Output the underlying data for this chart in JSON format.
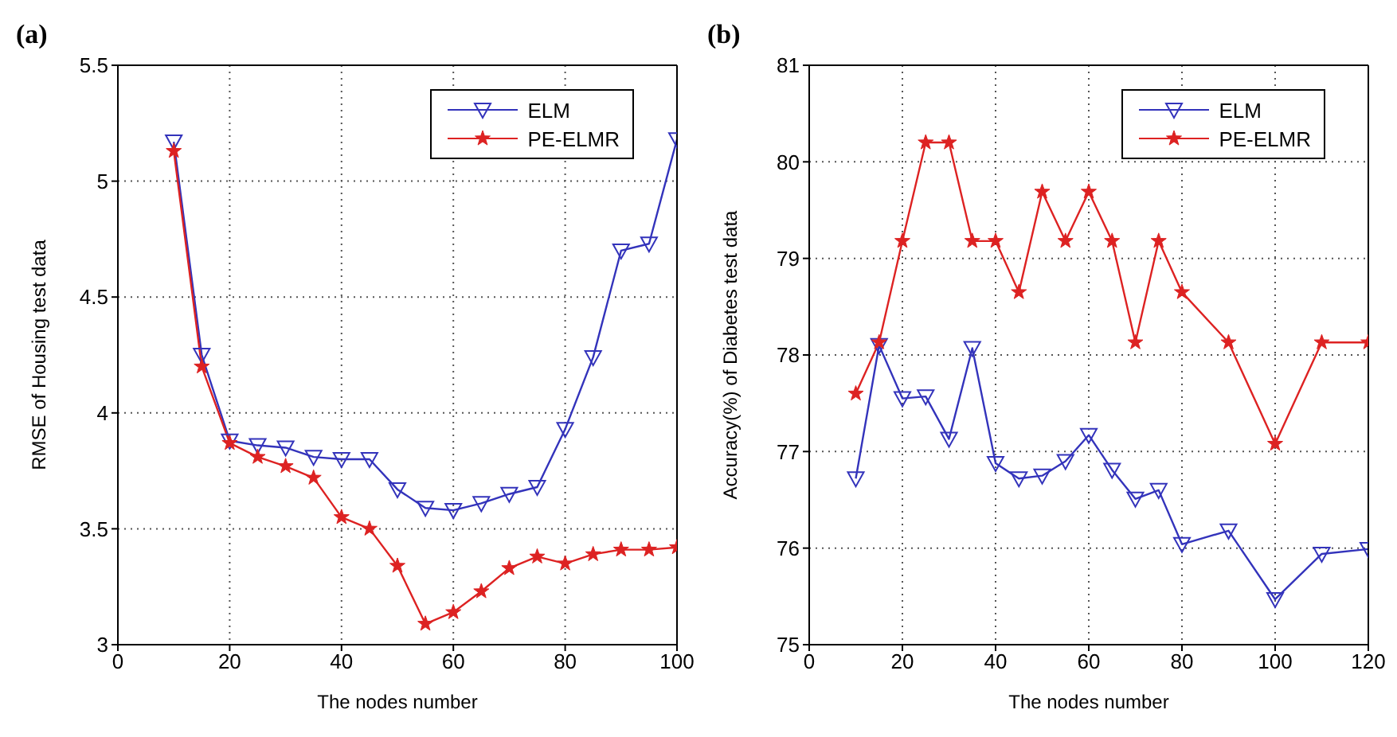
{
  "chart_data": [
    {
      "type": "line",
      "annotations": [
        "(a)"
      ],
      "xlabel": "The nodes number",
      "ylabel": "RMSE of Housing test data",
      "x": [
        10,
        15,
        20,
        25,
        30,
        35,
        40,
        45,
        50,
        55,
        60,
        65,
        70,
        75,
        80,
        85,
        90,
        95,
        100
      ],
      "series": [
        {
          "name": "ELM",
          "color": "#3333bb",
          "marker": "triangle",
          "values": [
            5.17,
            4.25,
            3.88,
            3.86,
            3.85,
            3.81,
            3.8,
            3.8,
            3.67,
            3.59,
            3.58,
            3.61,
            3.65,
            3.68,
            3.93,
            4.24,
            4.7,
            4.73,
            5.18
          ]
        },
        {
          "name": "PE-ELMR",
          "color": "#dd2222",
          "marker": "star",
          "values": [
            5.13,
            4.2,
            3.87,
            3.81,
            3.77,
            3.72,
            3.55,
            3.5,
            3.34,
            3.09,
            3.14,
            3.23,
            3.33,
            3.38,
            3.35,
            3.39,
            3.41,
            3.41,
            3.42
          ]
        }
      ],
      "xlim": [
        0,
        100
      ],
      "xticks": [
        0,
        20,
        40,
        60,
        80,
        100
      ],
      "ylim": [
        3,
        5.5
      ],
      "yticks": [
        3,
        3.5,
        4,
        4.5,
        5,
        5.5
      ],
      "grid": true,
      "legend": "top right",
      "line_style": "solid"
    },
    {
      "type": "line",
      "annotations": [
        "(b)"
      ],
      "xlabel": "The nodes number",
      "ylabel": "Accuracy(%) of Diabetes test data",
      "x": [
        10,
        15,
        20,
        25,
        30,
        35,
        40,
        45,
        50,
        55,
        60,
        65,
        70,
        75,
        80,
        90,
        100,
        110,
        120
      ],
      "series": [
        {
          "name": "ELM",
          "color": "#3333bb",
          "marker": "triangle",
          "values": [
            76.72,
            78.1,
            77.55,
            77.57,
            77.13,
            78.07,
            76.88,
            76.72,
            76.75,
            76.9,
            77.17,
            76.81,
            76.51,
            76.6,
            76.04,
            76.18,
            75.47,
            75.94,
            75.99
          ]
        },
        {
          "name": "PE-ELMR",
          "color": "#dd2222",
          "marker": "star",
          "values": [
            77.6,
            78.13,
            79.18,
            80.2,
            80.2,
            79.18,
            79.18,
            78.65,
            79.69,
            79.18,
            79.69,
            79.18,
            78.13,
            79.18,
            78.65,
            78.13,
            77.08,
            78.13,
            78.13
          ]
        }
      ],
      "xlim": [
        0,
        120
      ],
      "xticks": [
        0,
        20,
        40,
        60,
        80,
        100,
        120
      ],
      "ylim": [
        75,
        81
      ],
      "yticks": [
        75,
        76,
        77,
        78,
        79,
        80,
        81
      ],
      "grid": true,
      "legend": "top right",
      "line_style": "solid"
    }
  ]
}
